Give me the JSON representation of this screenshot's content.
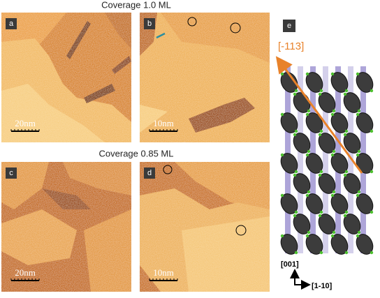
{
  "figure": {
    "headings": [
      "Coverage 1.0 ML",
      "Coverage 0.85 ML"
    ],
    "panels": [
      {
        "label": "a",
        "scale": "20nm"
      },
      {
        "label": "b",
        "scale": "10nm"
      },
      {
        "label": "c",
        "scale": "20nm"
      },
      {
        "label": "d",
        "scale": "10nm"
      }
    ],
    "model": {
      "label": "e",
      "direction": "[-113]",
      "axis_vertical": "[001]",
      "axis_horizontal": "[1-10]"
    }
  }
}
